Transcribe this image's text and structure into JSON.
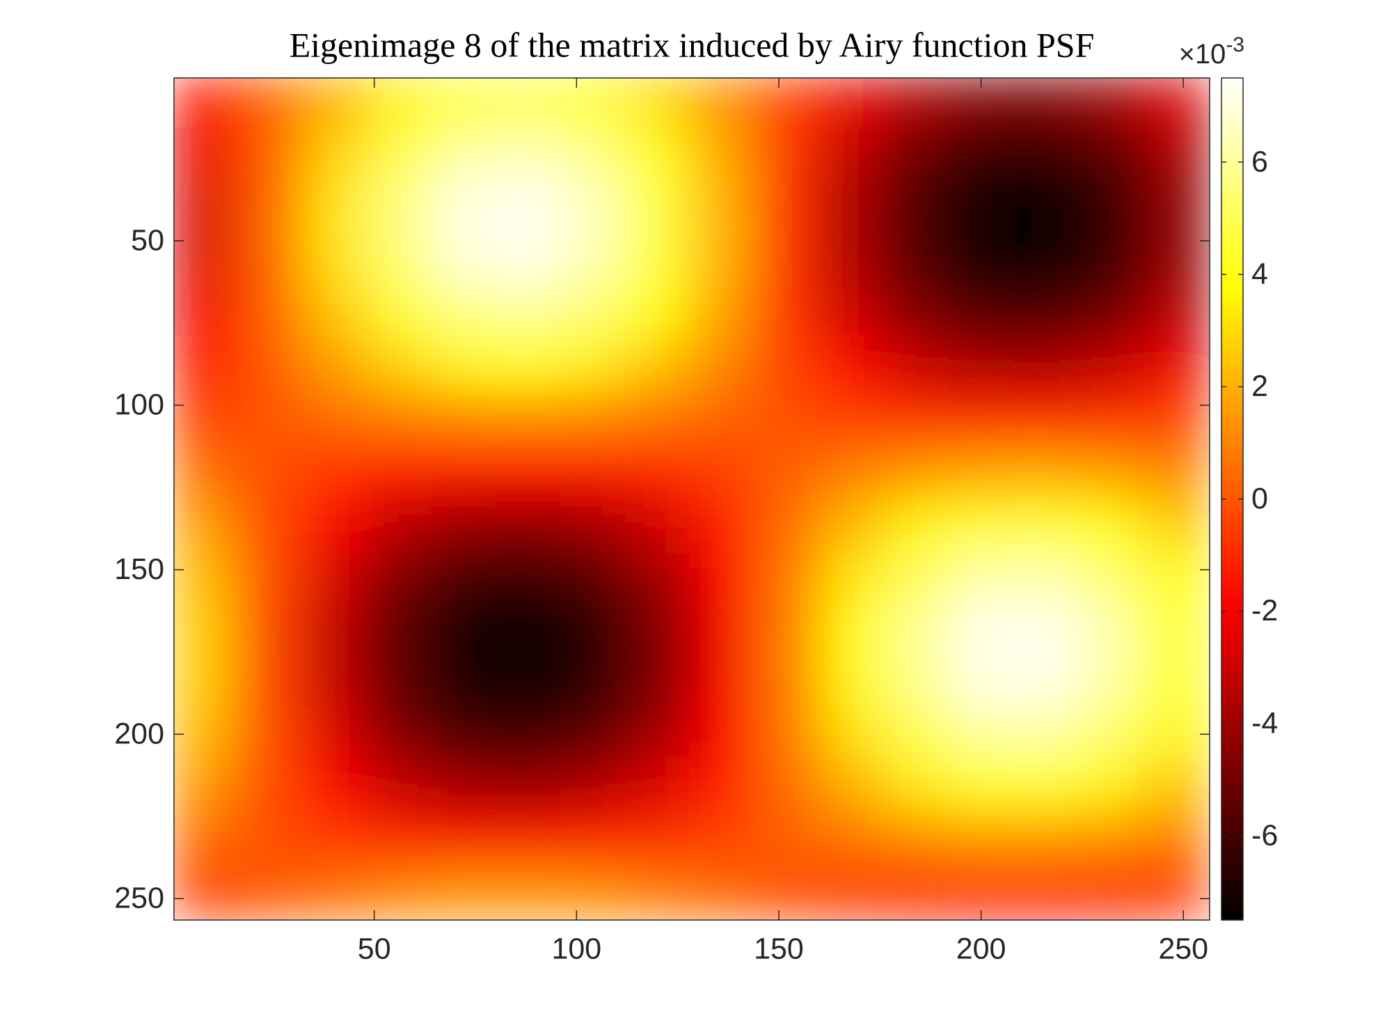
{
  "chart_data": {
    "type": "heatmap",
    "title": "Eigenimage 8 of the matrix induced by Airy function PSF",
    "colormap": "hot",
    "x": [
      8,
      24,
      40,
      56,
      72,
      88,
      104,
      120,
      136,
      152,
      168,
      184,
      200,
      216,
      232,
      248
    ],
    "y": [
      8,
      24,
      40,
      56,
      72,
      88,
      104,
      120,
      136,
      152,
      168,
      184,
      200,
      216,
      232,
      248
    ],
    "values": [
      [
        -1.7,
        0.2,
        2.0,
        3.5,
        4.5,
        4.7,
        4.2,
        3.0,
        1.3,
        -0.5,
        -2.3,
        -3.7,
        -4.6,
        -4.7,
        -4.0,
        -2.7
      ],
      [
        -2.3,
        0.2,
        2.8,
        4.9,
        6.2,
        6.5,
        5.8,
        4.2,
        1.9,
        -0.7,
        -3.3,
        -5.2,
        -6.3,
        -6.5,
        -5.6,
        -3.8
      ],
      [
        -2.7,
        0.3,
        3.2,
        5.6,
        7.1,
        7.4,
        6.6,
        4.7,
        2.1,
        -0.8,
        -3.7,
        -5.9,
        -7.2,
        -7.4,
        -6.3,
        -4.3
      ],
      [
        -2.6,
        0.3,
        3.1,
        5.4,
        6.9,
        7.2,
        6.4,
        4.6,
        2.1,
        -0.8,
        -3.6,
        -5.7,
        -7.0,
        -7.2,
        -6.2,
        -4.2
      ],
      [
        -2.1,
        0.2,
        2.5,
        4.5,
        5.6,
        5.9,
        5.3,
        3.8,
        1.7,
        -0.7,
        -3.0,
        -4.7,
        -5.8,
        -5.9,
        -5.1,
        -3.4
      ],
      [
        -1.4,
        0.1,
        1.6,
        2.8,
        3.6,
        3.8,
        3.4,
        2.4,
        1.1,
        -0.4,
        -1.9,
        -3.0,
        -3.7,
        -3.7,
        -3.2,
        -2.2
      ],
      [
        -0.4,
        0.0,
        0.5,
        0.8,
        1.0,
        1.1,
        1.0,
        0.7,
        0.3,
        -0.1,
        -0.5,
        -0.9,
        -1.0,
        -1.1,
        -0.9,
        -0.6
      ],
      [
        0.6,
        -0.1,
        -0.8,
        -1.4,
        -1.7,
        -1.8,
        -1.6,
        -1.1,
        -0.5,
        0.2,
        0.9,
        1.4,
        1.7,
        1.8,
        1.5,
        1.0
      ],
      [
        1.6,
        -0.2,
        -1.9,
        -3.3,
        -4.2,
        -4.4,
        -3.9,
        -2.8,
        -1.3,
        0.5,
        2.2,
        3.5,
        4.3,
        4.4,
        3.8,
        2.6
      ],
      [
        2.3,
        -0.2,
        -2.7,
        -4.8,
        -6.0,
        -6.3,
        -5.6,
        -4.1,
        -1.8,
        0.7,
        3.2,
        5.0,
        6.2,
        6.3,
        5.4,
        3.7
      ],
      [
        2.6,
        -0.3,
        -3.2,
        -5.5,
        -7.0,
        -7.4,
        -6.6,
        -4.7,
        -2.1,
        0.8,
        3.7,
        5.9,
        7.2,
        7.3,
        6.3,
        4.3
      ],
      [
        2.6,
        -0.3,
        -3.1,
        -5.5,
        -6.9,
        -7.3,
        -6.5,
        -4.7,
        -2.1,
        0.8,
        3.6,
        5.8,
        7.1,
        7.2,
        6.2,
        4.2
      ],
      [
        2.2,
        -0.2,
        -2.6,
        -4.7,
        -5.9,
        -6.2,
        -5.5,
        -4.0,
        -1.8,
        0.7,
        3.1,
        4.9,
        6.0,
        6.1,
        5.3,
        3.6
      ],
      [
        1.5,
        -0.2,
        -1.8,
        -3.1,
        -3.9,
        -4.1,
        -3.6,
        -2.6,
        -1.2,
        0.5,
        2.0,
        3.3,
        4.0,
        4.1,
        3.5,
        2.4
      ],
      [
        0.5,
        -0.1,
        -0.6,
        -1.1,
        -1.4,
        -1.4,
        -1.3,
        -0.9,
        -0.4,
        0.2,
        0.7,
        1.1,
        1.4,
        1.4,
        1.2,
        0.8
      ],
      [
        -0.5,
        0.1,
        0.6,
        1.1,
        1.4,
        1.4,
        1.3,
        0.9,
        0.4,
        -0.2,
        -0.7,
        -1.1,
        -1.4,
        -1.4,
        -1.2,
        -0.8
      ]
    ],
    "xlim": [
      0.5,
      256.5
    ],
    "ylim": [
      0.5,
      256.5
    ],
    "y_reversed": true,
    "xticks": [
      50,
      100,
      150,
      200,
      250
    ],
    "yticks": [
      50,
      100,
      150,
      200,
      250
    ],
    "clim": [
      -7.5,
      7.5
    ],
    "cticks": [
      -6,
      -4,
      -2,
      0,
      2,
      4,
      6
    ],
    "colorbar_multiplier": {
      "base": "×10",
      "exponent": "-3"
    }
  }
}
